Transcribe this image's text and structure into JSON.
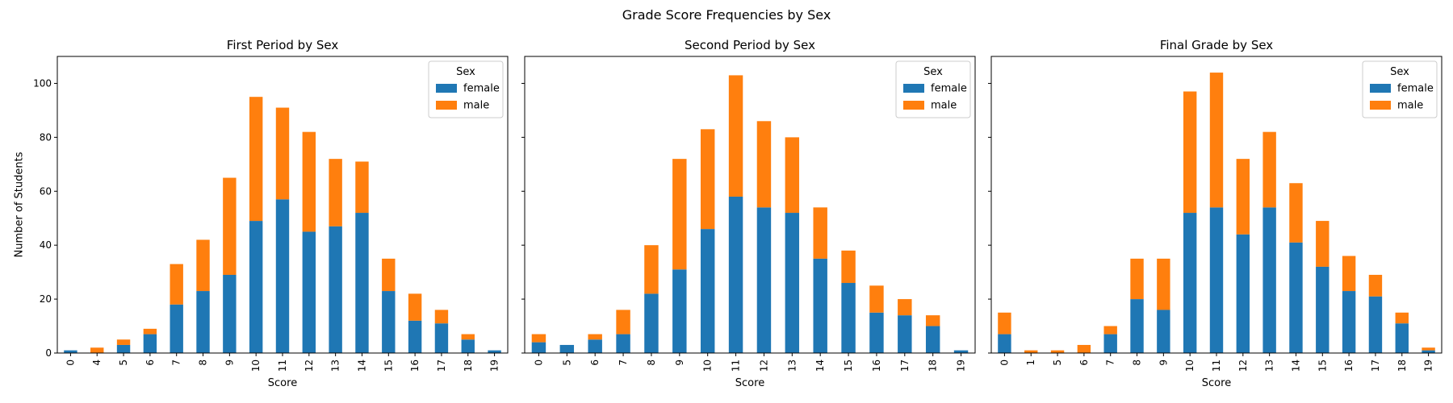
{
  "figure": {
    "suptitle": "Grade Score Frequencies by Sex"
  },
  "colors": {
    "female": "#1f77b4",
    "male": "#ff7f0e"
  },
  "chart_data": [
    {
      "type": "bar",
      "stacked": true,
      "title": "First Period by Sex",
      "xlabel": "Score",
      "ylabel": "Number of Students",
      "ylim": [
        0,
        110
      ],
      "yticks": [
        0,
        20,
        40,
        60,
        80,
        100
      ],
      "legend": {
        "title": "Sex",
        "placement": "top-right"
      },
      "categories": [
        "0",
        "4",
        "5",
        "6",
        "7",
        "8",
        "9",
        "10",
        "11",
        "12",
        "13",
        "14",
        "15",
        "16",
        "17",
        "18",
        "19"
      ],
      "series": [
        {
          "name": "female",
          "values": [
            1,
            0,
            3,
            7,
            18,
            23,
            29,
            49,
            57,
            45,
            47,
            52,
            23,
            12,
            11,
            5,
            1
          ]
        },
        {
          "name": "male",
          "values": [
            0,
            2,
            2,
            2,
            15,
            19,
            36,
            46,
            34,
            37,
            25,
            19,
            12,
            10,
            5,
            2,
            0
          ]
        }
      ]
    },
    {
      "type": "bar",
      "stacked": true,
      "title": "Second Period by Sex",
      "xlabel": "Score",
      "ylabel": "",
      "ylim": [
        0,
        110
      ],
      "yticks": [
        0,
        20,
        40,
        60,
        80,
        100
      ],
      "legend": {
        "title": "Sex",
        "placement": "top-right"
      },
      "categories": [
        "0",
        "5",
        "6",
        "7",
        "8",
        "9",
        "10",
        "11",
        "12",
        "13",
        "14",
        "15",
        "16",
        "17",
        "18",
        "19"
      ],
      "series": [
        {
          "name": "female",
          "values": [
            4,
            3,
            5,
            7,
            22,
            31,
            46,
            58,
            54,
            52,
            35,
            26,
            15,
            14,
            10,
            1
          ]
        },
        {
          "name": "male",
          "values": [
            3,
            0,
            2,
            9,
            18,
            41,
            37,
            45,
            32,
            28,
            19,
            12,
            10,
            6,
            4,
            0
          ]
        }
      ]
    },
    {
      "type": "bar",
      "stacked": true,
      "title": "Final Grade by Sex",
      "xlabel": "Score",
      "ylabel": "",
      "ylim": [
        0,
        110
      ],
      "yticks": [
        0,
        20,
        40,
        60,
        80,
        100
      ],
      "legend": {
        "title": "Sex",
        "placement": "top-right"
      },
      "categories": [
        "0",
        "1",
        "5",
        "6",
        "7",
        "8",
        "9",
        "10",
        "11",
        "12",
        "13",
        "14",
        "15",
        "16",
        "17",
        "18",
        "19"
      ],
      "series": [
        {
          "name": "female",
          "values": [
            7,
            0,
            0,
            0,
            7,
            20,
            16,
            52,
            54,
            44,
            54,
            41,
            32,
            23,
            21,
            11,
            1
          ]
        },
        {
          "name": "male",
          "values": [
            8,
            1,
            1,
            3,
            3,
            15,
            19,
            45,
            50,
            28,
            28,
            22,
            17,
            13,
            8,
            4,
            1
          ]
        }
      ]
    }
  ]
}
